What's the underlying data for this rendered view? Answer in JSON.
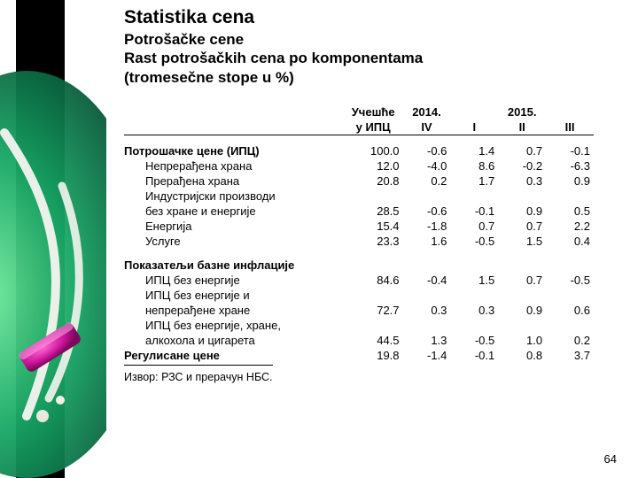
{
  "deco": {
    "bg_black": "#000000",
    "green_light": "#3fbf6a",
    "green_dark": "#0a7a3a",
    "teal": "#0d9a88",
    "magenta": "#d81fa8",
    "white": "#ffffff"
  },
  "title": "Statistika cena",
  "subtitle_line1": "Potrošačke cene",
  "subtitle_line2": "Rast potrošačkih cena po komponentama",
  "subtitle_line3": "(tromesečne stope u %)",
  "table": {
    "col_header_share": "Учешће",
    "col_header_share2": "у ИПЦ",
    "year_a": "2014.",
    "year_b": "2015.",
    "quarters": [
      "IV",
      "I",
      "II",
      "III"
    ],
    "rows": [
      {
        "label": "Потрошачке цене (ИПЦ)",
        "bold": true,
        "indent": false,
        "vals": [
          "100.0",
          "-0.6",
          "1.4",
          "0.7",
          "-0.1"
        ]
      },
      {
        "label": "Непрерађена храна",
        "bold": false,
        "indent": true,
        "vals": [
          "12.0",
          "-4.0",
          "8.6",
          "-0.2",
          "-6.3"
        ]
      },
      {
        "label": "Прерађена храна",
        "bold": false,
        "indent": true,
        "vals": [
          "20.8",
          "0.2",
          "1.7",
          "0.3",
          "0.9"
        ]
      },
      {
        "label": "Индустријски производи",
        "bold": false,
        "indent": true,
        "vals": [
          "",
          "",
          "",
          "",
          ""
        ]
      },
      {
        "label": "без хране и енергије",
        "bold": false,
        "indent": true,
        "vals": [
          "28.5",
          "-0.6",
          "-0.1",
          "0.9",
          "0.5"
        ]
      },
      {
        "label": "Енергија",
        "bold": false,
        "indent": true,
        "vals": [
          "15.4",
          "-1.8",
          "0.7",
          "0.7",
          "2.2"
        ]
      },
      {
        "label": "Услуге",
        "bold": false,
        "indent": true,
        "vals": [
          "23.3",
          "1.6",
          "-0.5",
          "1.5",
          "0.4"
        ]
      }
    ],
    "section2_title": "Показатељи базне инфлације",
    "rows2": [
      {
        "label": "ИПЦ без енергије",
        "bold": false,
        "indent": true,
        "vals": [
          "84.6",
          "-0.4",
          "1.5",
          "0.7",
          "-0.5"
        ]
      },
      {
        "label": "ИПЦ без енергије и",
        "bold": false,
        "indent": true,
        "vals": [
          "",
          "",
          "",
          "",
          ""
        ]
      },
      {
        "label": "непрерађене хране",
        "bold": false,
        "indent": true,
        "vals": [
          "72.7",
          "0.3",
          "0.3",
          "0.9",
          "0.6"
        ]
      },
      {
        "label": "ИПЦ без енергије, хране,",
        "bold": false,
        "indent": true,
        "vals": [
          "",
          "",
          "",
          "",
          ""
        ]
      },
      {
        "label": "алкохола и цигарета",
        "bold": false,
        "indent": true,
        "vals": [
          "44.5",
          "1.3",
          "-0.5",
          "1.0",
          "0.2"
        ]
      }
    ],
    "row_regulated": {
      "label": "Регулисане цене",
      "bold": true,
      "indent": false,
      "vals": [
        "19.8",
        "-1.4",
        "-0.1",
        "0.8",
        "3.7"
      ]
    },
    "source": "Извор: РЗС и прерачун НБС."
  },
  "page_number": "64"
}
